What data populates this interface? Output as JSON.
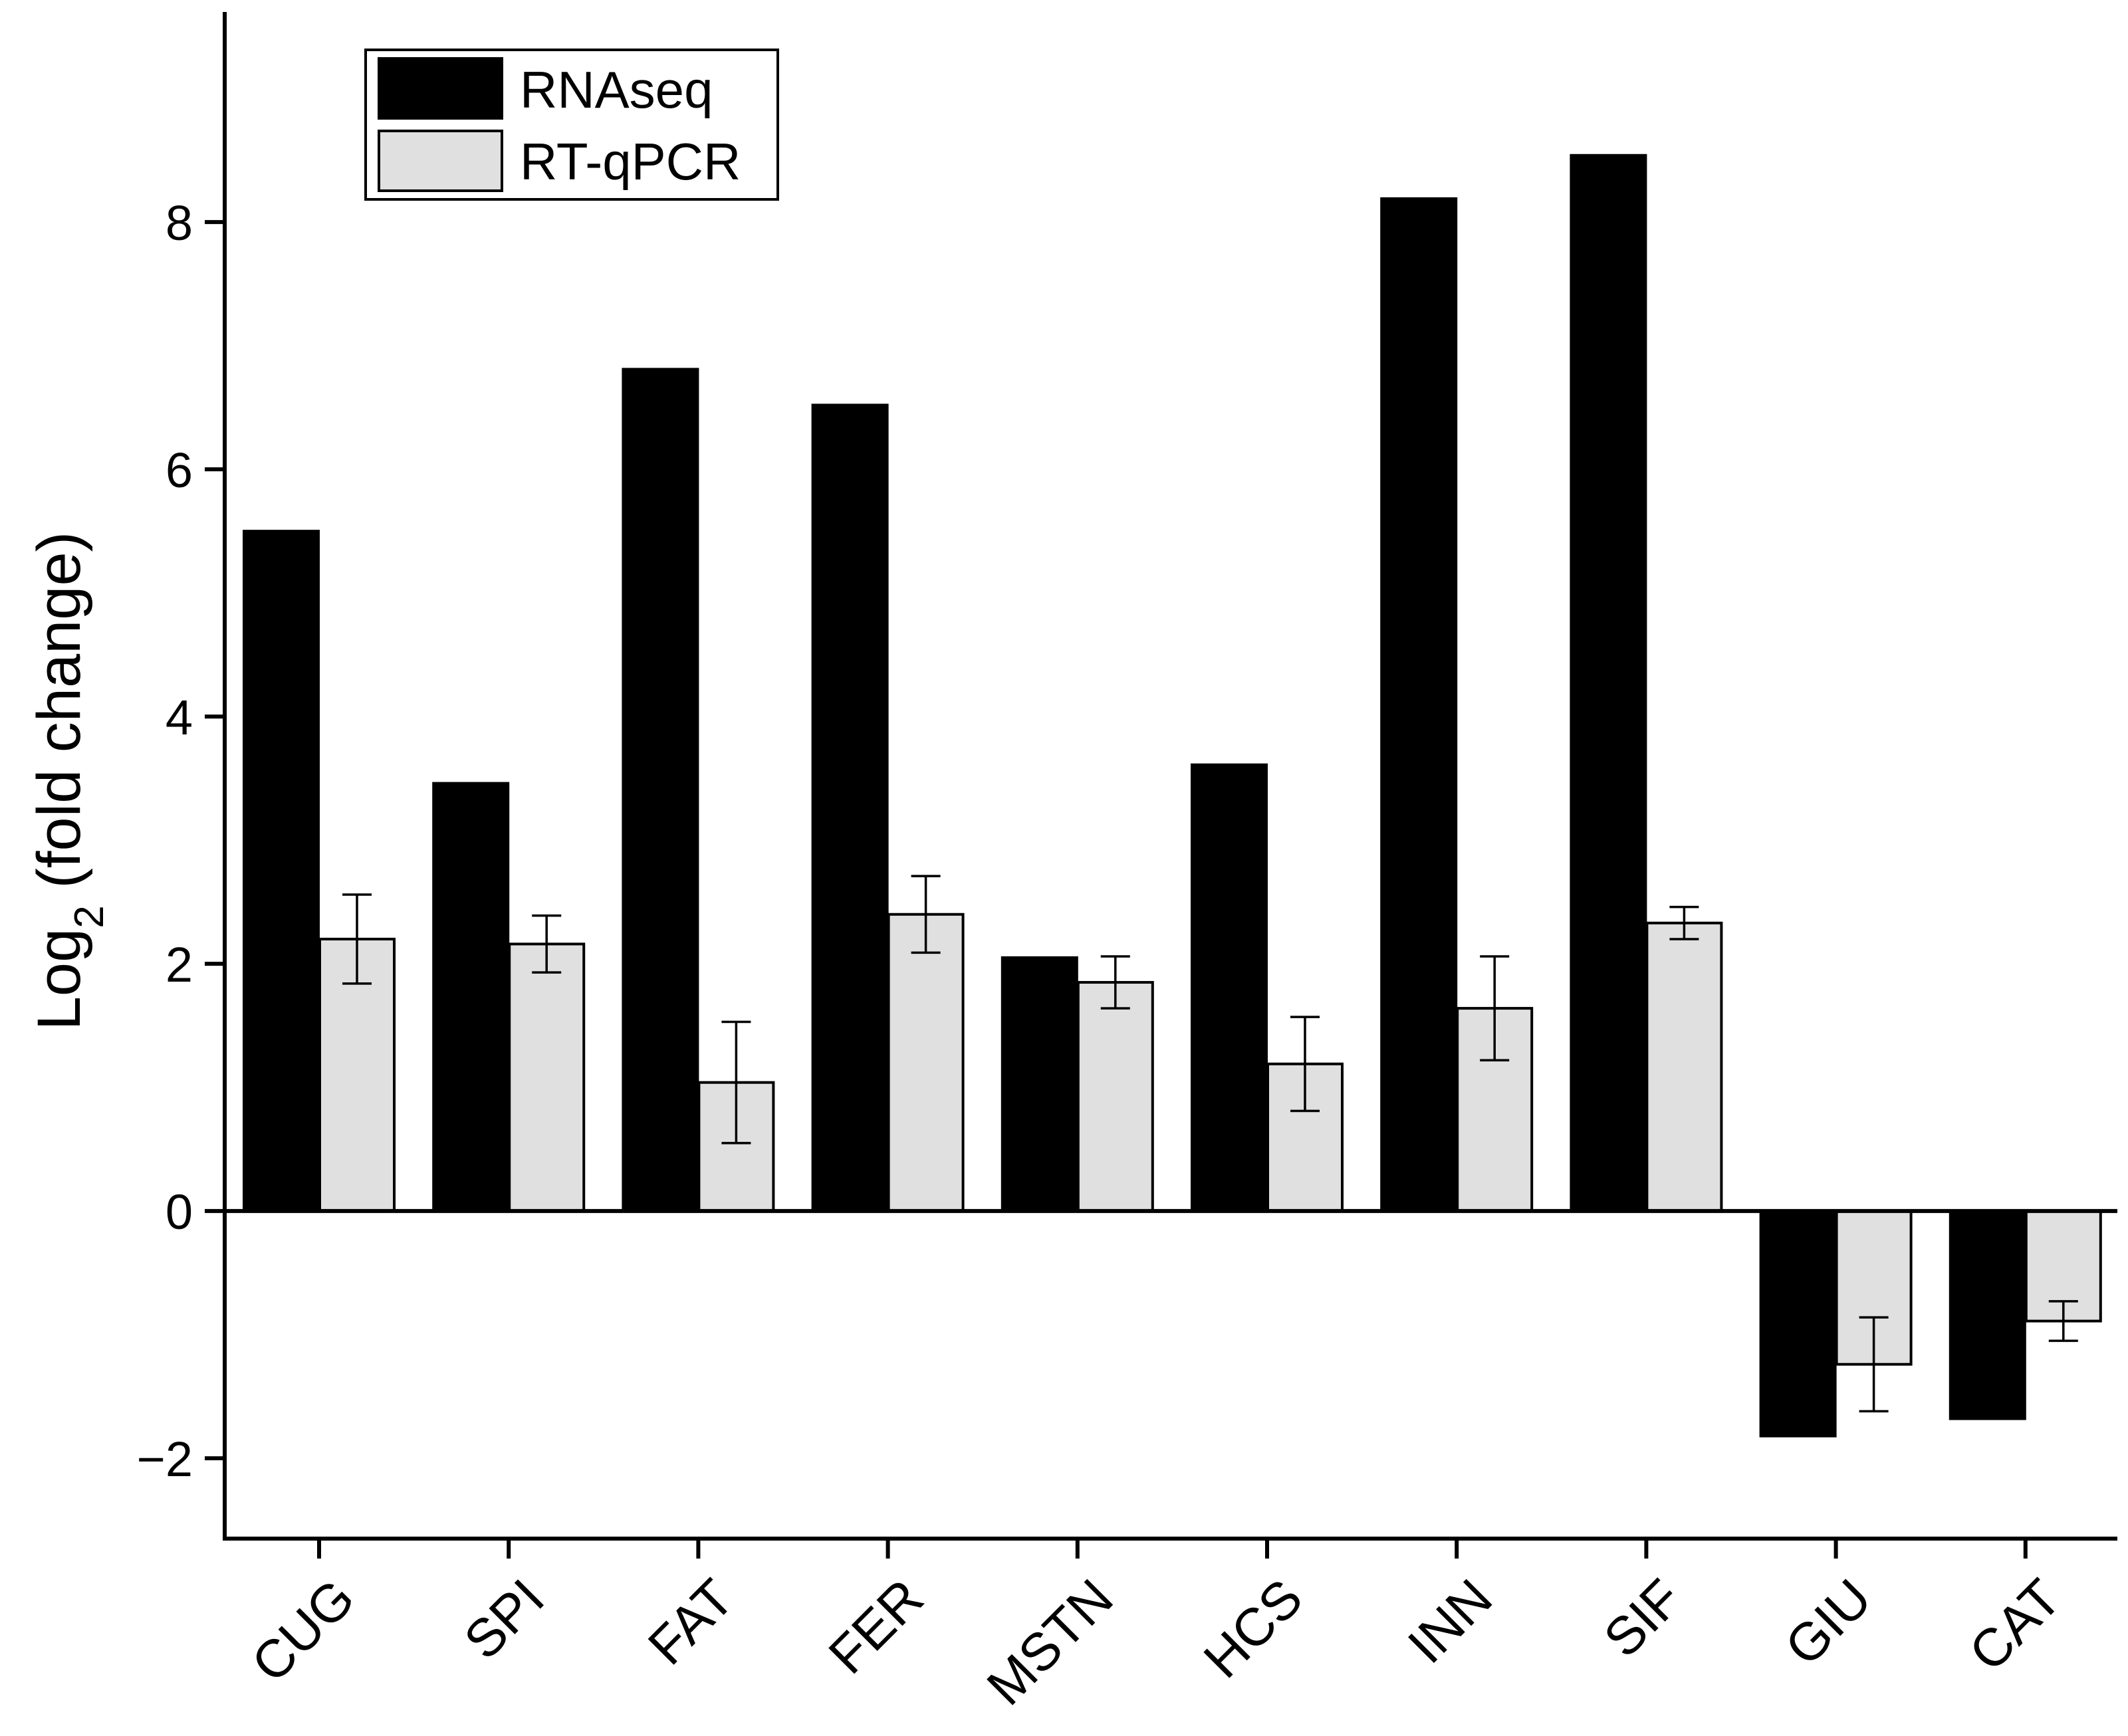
{
  "chart_data": {
    "type": "bar",
    "title": "",
    "xlabel": "",
    "ylabel": "Log",
    "ylabel_subscript": "2",
    "ylabel_suffix": " (fold change)",
    "ylim": [
      -2.65,
      9.7
    ],
    "yticks": [
      -2,
      0,
      2,
      4,
      6,
      8
    ],
    "ytick_labels": [
      "−2",
      "0",
      "2",
      "4",
      "6",
      "8"
    ],
    "grid": false,
    "legend_position": "top-left",
    "categories": [
      "CUG",
      "SPI",
      "FAT",
      "FER",
      "MSTN",
      "HCS",
      "INN",
      "SIF",
      "GIU",
      "CAT"
    ],
    "series": [
      {
        "name": "RNAseq",
        "color": "#000000",
        "values": [
          5.5,
          3.46,
          6.81,
          6.52,
          2.05,
          3.61,
          8.19,
          8.54,
          -1.82,
          -1.68
        ]
      },
      {
        "name": "RT-qPCR",
        "color": "#e0e0e0",
        "values": [
          2.2,
          2.16,
          1.04,
          2.4,
          1.85,
          1.19,
          1.64,
          2.33,
          -1.24,
          -0.89
        ],
        "error": [
          0.36,
          0.23,
          0.49,
          0.31,
          0.21,
          0.38,
          0.42,
          0.13,
          0.38,
          0.16
        ]
      }
    ]
  }
}
